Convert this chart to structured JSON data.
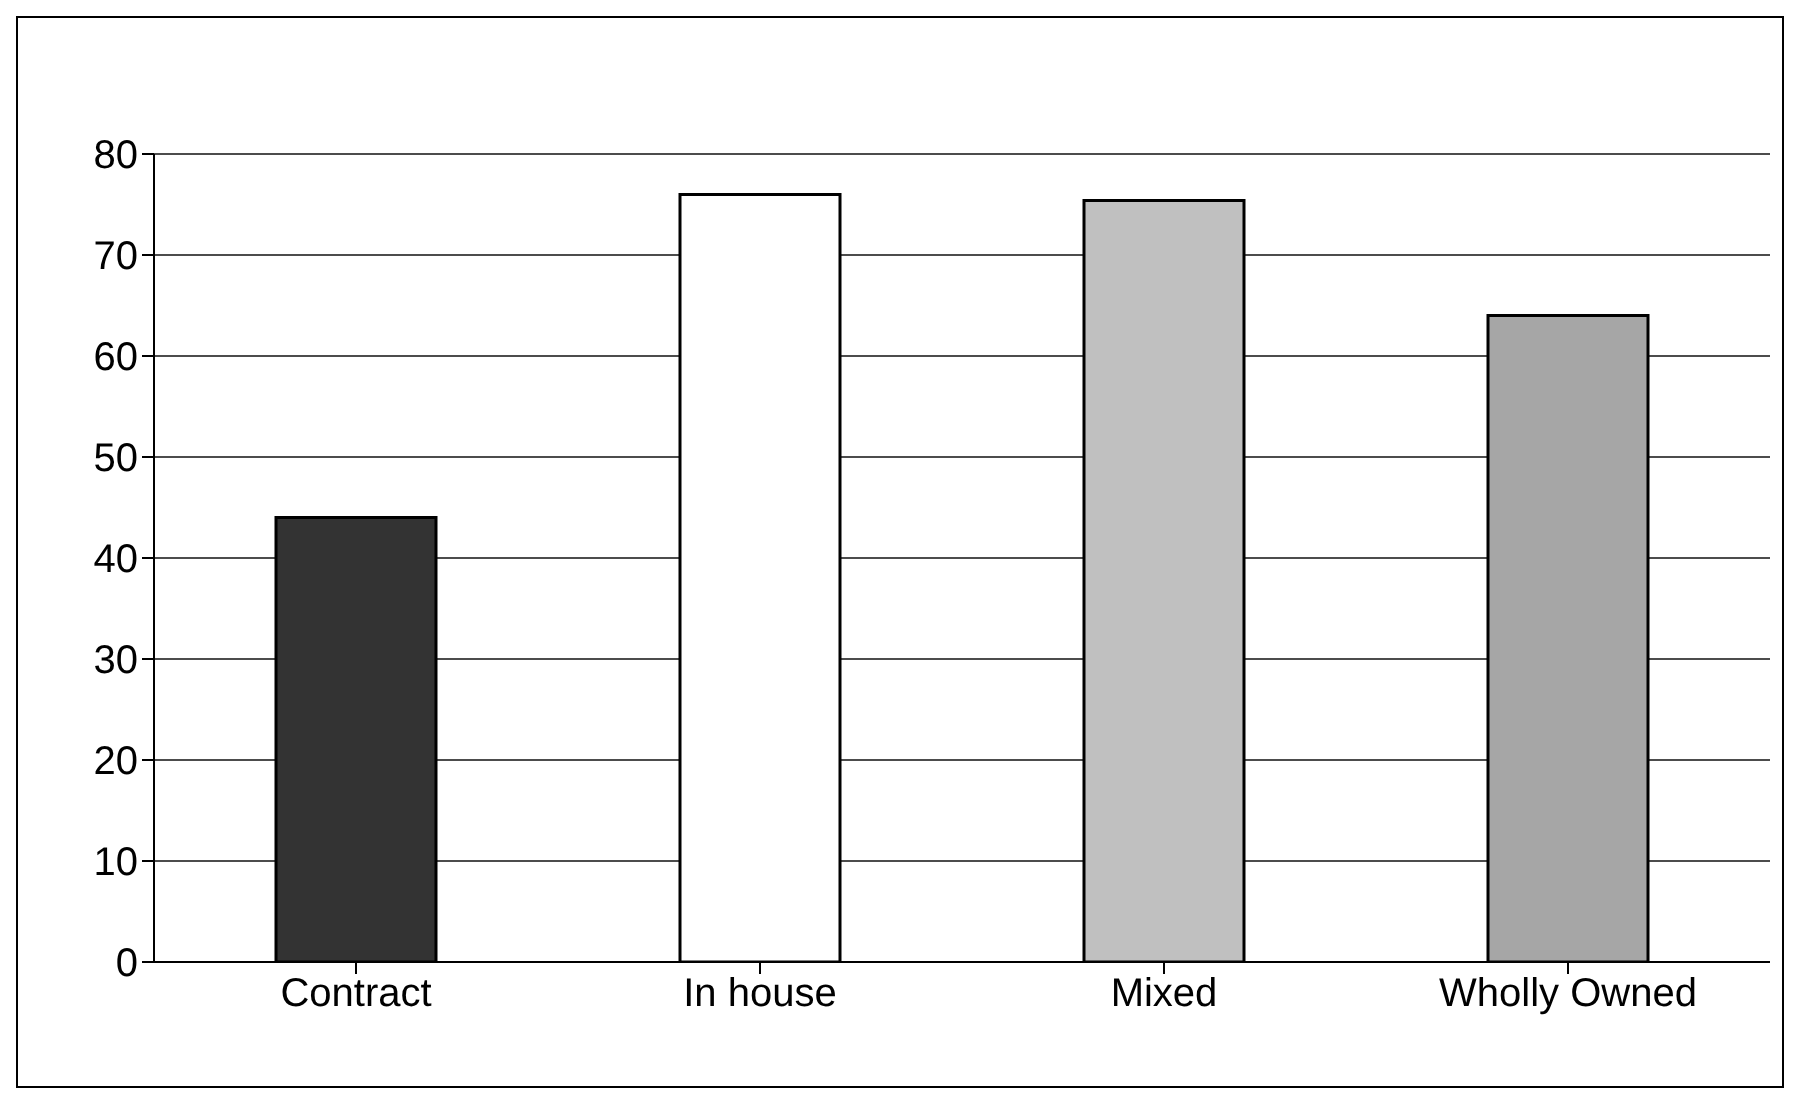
{
  "chart_data": {
    "type": "bar",
    "categories": [
      "Contract",
      "In house",
      "Mixed",
      "Wholly Owned"
    ],
    "values": [
      44,
      76,
      75.4,
      64
    ],
    "colors": [
      "#333333",
      "#ffffff",
      "#c0c0c0",
      "#a6a6a6"
    ],
    "ylim": [
      0,
      80
    ],
    "yticks": [
      0,
      10,
      20,
      30,
      40,
      50,
      60,
      70,
      80
    ],
    "grid": "y"
  }
}
